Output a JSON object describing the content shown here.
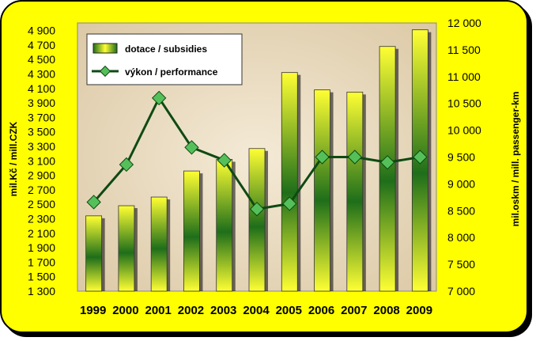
{
  "colors": {
    "frame": "#ffff00",
    "plot_background": "#eadcc3",
    "bar_light": "#ffff33",
    "bar_dark": "#1e6e1a",
    "line": "#0e4a12",
    "marker": "#55c05a"
  },
  "chart_data": {
    "type": "bar",
    "categories": [
      "1999",
      "2000",
      "2001",
      "2002",
      "2003",
      "2004",
      "2005",
      "2006",
      "2007",
      "2008",
      "2009"
    ],
    "series": [
      {
        "name": "dotace / subsidies",
        "type": "bar",
        "axis": "left",
        "values": [
          2340,
          2480,
          2600,
          2960,
          3120,
          3270,
          4320,
          4080,
          4050,
          4680,
          4910
        ]
      },
      {
        "name": "výkon / performance",
        "type": "line",
        "axis": "right",
        "values": [
          8660,
          9360,
          10600,
          9680,
          9440,
          8530,
          8630,
          9500,
          9500,
          9400,
          9500
        ]
      }
    ],
    "ylabel": "mil.Kč / mill.CZK",
    "y2label": "mil.oskm / mill. passenger-km",
    "ylim": [
      1300,
      5000
    ],
    "y2lim": [
      7000,
      12000
    ],
    "yticks": [
      "1 300",
      "1 500",
      "1 700",
      "1 900",
      "2 100",
      "2 300",
      "2 500",
      "2 700",
      "2 900",
      "3 100",
      "3 300",
      "3 500",
      "3 700",
      "3 900",
      "4 100",
      "4 300",
      "4 500",
      "4 700",
      "4 900"
    ],
    "y2ticks": [
      "7 000",
      "7 500",
      "8 000",
      "8 500",
      "9 000",
      "9 500",
      "10 000",
      "10 500",
      "11 000",
      "11 500",
      "12 000"
    ],
    "grid": false,
    "legend_position": "top-left"
  }
}
